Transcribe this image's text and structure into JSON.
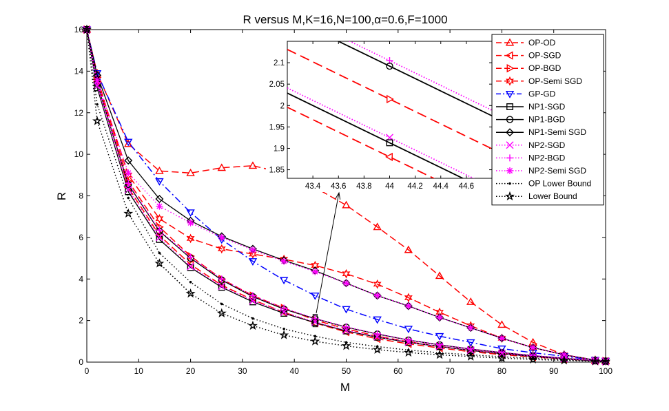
{
  "chart_data": {
    "type": "line",
    "title": "R versus M,K=16,N=100,α=0.6,F=1000",
    "xlabel": "M",
    "ylabel": "R",
    "xlim": [
      0,
      100
    ],
    "ylim": [
      0,
      16
    ],
    "xticks": [
      0,
      10,
      20,
      30,
      40,
      50,
      60,
      70,
      80,
      90,
      100
    ],
    "yticks": [
      0,
      2,
      4,
      6,
      8,
      10,
      12,
      14,
      16
    ],
    "grid": false,
    "legend_position": "top-right",
    "x": [
      0,
      2,
      8,
      14,
      20,
      26,
      32,
      38,
      44,
      50,
      56,
      62,
      68,
      74,
      80,
      86,
      92,
      98,
      100
    ],
    "series": [
      {
        "name": "OP-OD",
        "color": "#ff0000",
        "dash": "long",
        "marker": "triangle-up",
        "values": [
          16,
          13.9,
          10.5,
          9.2,
          9.1,
          9.35,
          9.45,
          9.1,
          8.4,
          7.55,
          6.5,
          5.4,
          4.15,
          2.9,
          1.8,
          0.95,
          0.35,
          0.07,
          0.05
        ]
      },
      {
        "name": "OP-SGD",
        "color": "#ff0000",
        "dash": "long",
        "marker": "triangle-left",
        "values": [
          16,
          13.6,
          8.4,
          6.1,
          4.7,
          3.7,
          3.0,
          2.4,
          1.88,
          1.45,
          1.12,
          0.88,
          0.68,
          0.5,
          0.36,
          0.25,
          0.15,
          0.06,
          0.04
        ]
      },
      {
        "name": "OP-BGD",
        "color": "#ff0000",
        "dash": "long",
        "marker": "triangle-right",
        "values": [
          16,
          13.7,
          8.7,
          6.5,
          5.1,
          4.0,
          3.2,
          2.6,
          2.02,
          1.6,
          1.25,
          0.98,
          0.76,
          0.57,
          0.41,
          0.28,
          0.17,
          0.07,
          0.05
        ]
      },
      {
        "name": "OP-Semi SGD",
        "color": "#ff0000",
        "dash": "long",
        "marker": "hexagram",
        "values": [
          16,
          13.6,
          9.0,
          6.9,
          5.95,
          5.45,
          5.2,
          4.95,
          4.65,
          4.25,
          3.75,
          3.1,
          2.4,
          1.75,
          1.15,
          0.7,
          0.35,
          0.1,
          0.06
        ]
      },
      {
        "name": "GP-GD",
        "color": "#0000ff",
        "dash": "dashdot",
        "marker": "triangle-down",
        "values": [
          16,
          13.9,
          10.6,
          8.7,
          7.2,
          5.9,
          4.85,
          3.95,
          3.2,
          2.55,
          2.05,
          1.6,
          1.25,
          0.95,
          0.65,
          0.45,
          0.28,
          0.1,
          0.06
        ]
      },
      {
        "name": "NP1-SGD",
        "color": "#000000",
        "dash": "solid",
        "marker": "square",
        "values": [
          16,
          13.2,
          8.2,
          5.9,
          4.55,
          3.6,
          2.9,
          2.35,
          1.9,
          1.5,
          1.2,
          0.95,
          0.75,
          0.56,
          0.4,
          0.27,
          0.16,
          0.06,
          0.04
        ]
      },
      {
        "name": "NP1-BGD",
        "color": "#000000",
        "dash": "solid",
        "marker": "circle",
        "values": [
          16,
          13.4,
          8.55,
          6.3,
          5.0,
          3.95,
          3.15,
          2.55,
          2.09,
          1.68,
          1.35,
          1.06,
          0.83,
          0.63,
          0.46,
          0.31,
          0.19,
          0.07,
          0.05
        ]
      },
      {
        "name": "NP1-Semi SGD",
        "color": "#000000",
        "dash": "solid",
        "marker": "diamond",
        "values": [
          16,
          13.8,
          9.7,
          7.85,
          6.8,
          6.05,
          5.45,
          4.9,
          4.4,
          3.8,
          3.2,
          2.7,
          2.15,
          1.65,
          1.15,
          0.7,
          0.35,
          0.1,
          0.06
        ]
      },
      {
        "name": "NP2-SGD",
        "color": "#ff00ff",
        "dash": "dotted",
        "marker": "x",
        "values": [
          16,
          13.3,
          8.3,
          6.0,
          4.6,
          3.65,
          2.95,
          2.4,
          1.93,
          1.53,
          1.22,
          0.97,
          0.77,
          0.58,
          0.42,
          0.28,
          0.17,
          0.06,
          0.04
        ]
      },
      {
        "name": "NP2-BGD",
        "color": "#ff00ff",
        "dash": "dotted",
        "marker": "plus",
        "values": [
          16,
          13.45,
          8.6,
          6.35,
          5.05,
          4.0,
          3.2,
          2.6,
          2.1,
          1.7,
          1.36,
          1.07,
          0.84,
          0.64,
          0.47,
          0.32,
          0.2,
          0.07,
          0.05
        ]
      },
      {
        "name": "NP2-Semi SGD",
        "color": "#ff00ff",
        "dash": "dotted",
        "marker": "asterisk",
        "values": [
          16,
          13.55,
          9.1,
          7.5,
          6.7,
          6.0,
          5.4,
          4.85,
          4.35,
          3.8,
          3.2,
          2.7,
          2.15,
          1.65,
          1.15,
          0.7,
          0.35,
          0.1,
          0.06
        ]
      },
      {
        "name": "OP Lower Bound",
        "color": "#000000",
        "dash": "dotted",
        "marker": "dot",
        "values": [
          16,
          12.4,
          7.9,
          5.25,
          3.85,
          2.8,
          2.1,
          1.6,
          1.25,
          0.95,
          0.75,
          0.58,
          0.45,
          0.35,
          0.26,
          0.18,
          0.11,
          0.05,
          0.04
        ]
      },
      {
        "name": "Lower Bound",
        "color": "#000000",
        "dash": "dotted",
        "marker": "pentagram",
        "values": [
          16,
          11.6,
          7.15,
          4.75,
          3.3,
          2.35,
          1.75,
          1.3,
          1.0,
          0.78,
          0.6,
          0.46,
          0.35,
          0.27,
          0.19,
          0.13,
          0.08,
          0.04,
          0.03
        ]
      }
    ],
    "inset": {
      "xlim": [
        43.2,
        44.8
      ],
      "ylim": [
        1.83,
        2.15
      ],
      "xticks": [
        43.4,
        43.6,
        43.8,
        44,
        44.2,
        44.4,
        44.6
      ],
      "xtick_labels": [
        "43.4",
        "43.6",
        "43.8",
        "44",
        "44.2",
        "44.4",
        "44.6"
      ],
      "yticks": [
        1.85,
        1.9,
        1.95,
        2,
        2.05,
        2.1
      ],
      "ytick_labels": [
        "1.85",
        "1.9",
        "1.95",
        "2",
        "2.05",
        "2.1"
      ],
      "points": [
        {
          "name": "NP2-BGD",
          "x": 44,
          "y": 2.105,
          "slope": -0.145
        },
        {
          "name": "NP1-BGD",
          "x": 44,
          "y": 2.092,
          "slope": -0.145
        },
        {
          "name": "OP-BGD",
          "x": 44,
          "y": 2.015,
          "slope": -0.145
        },
        {
          "name": "NP2-SGD",
          "x": 44,
          "y": 1.925,
          "slope": -0.145
        },
        {
          "name": "NP1-SGD",
          "x": 44,
          "y": 1.913,
          "slope": -0.145
        },
        {
          "name": "OP-SGD",
          "x": 44,
          "y": 1.88,
          "slope": -0.145
        }
      ]
    }
  }
}
